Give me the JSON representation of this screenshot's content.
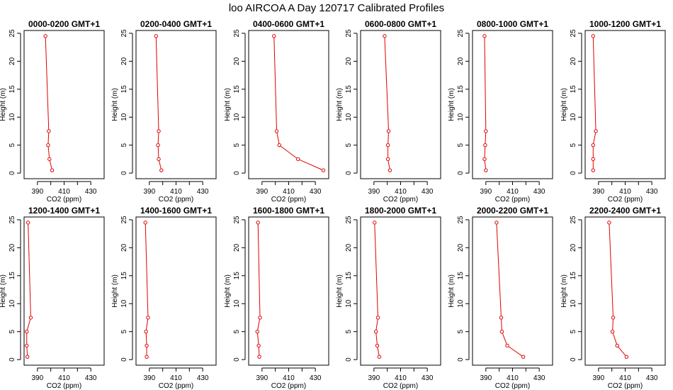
{
  "figure": {
    "title": "loo AIRCOA A  Day 120717  Calibrated Profiles"
  },
  "chart_data": [
    {
      "type": "line",
      "title": "0000-0200 GMT+1",
      "xlabel": "CO2 (ppm)",
      "ylabel": "Height (m)",
      "xlim": [
        380,
        440
      ],
      "ylim": [
        -1,
        25.5
      ],
      "xticks": [
        390,
        410,
        430
      ],
      "yticks": [
        0,
        5,
        10,
        15,
        20,
        25
      ],
      "grid": false,
      "series": [
        {
          "x": [
            401,
            399,
            398,
            398.5,
            396
          ],
          "y": [
            0.5,
            2.5,
            5,
            7.5,
            24.5
          ]
        }
      ]
    },
    {
      "type": "line",
      "title": "0200-0400 GMT+1",
      "xlabel": "CO2 (ppm)",
      "ylabel": "Height (m)",
      "xlim": [
        380,
        440
      ],
      "ylim": [
        -1,
        25.5
      ],
      "xticks": [
        390,
        410,
        430
      ],
      "yticks": [
        0,
        5,
        10,
        15,
        20,
        25
      ],
      "grid": false,
      "series": [
        {
          "x": [
            399,
            397,
            396.5,
            397,
            395
          ],
          "y": [
            0.5,
            2.5,
            5,
            7.5,
            24.5
          ]
        }
      ]
    },
    {
      "type": "line",
      "title": "0400-0600 GMT+1",
      "xlabel": "CO2 (ppm)",
      "ylabel": "Height (m)",
      "xlim": [
        380,
        440
      ],
      "ylim": [
        -1,
        25.5
      ],
      "xticks": [
        390,
        410,
        430
      ],
      "yticks": [
        0,
        5,
        10,
        15,
        20,
        25
      ],
      "grid": false,
      "series": [
        {
          "x": [
            436,
            417,
            403,
            401,
            399
          ],
          "y": [
            0.5,
            2.5,
            5,
            7.5,
            24.5
          ]
        }
      ]
    },
    {
      "type": "line",
      "title": "0600-0800 GMT+1",
      "xlabel": "CO2 (ppm)",
      "ylabel": "Height (m)",
      "xlim": [
        380,
        440
      ],
      "ylim": [
        -1,
        25.5
      ],
      "xticks": [
        390,
        410,
        430
      ],
      "yticks": [
        0,
        5,
        10,
        15,
        20,
        25
      ],
      "grid": false,
      "series": [
        {
          "x": [
            402,
            400.5,
            400.5,
            401,
            398
          ],
          "y": [
            0.5,
            2.5,
            5,
            7.5,
            24.5
          ]
        }
      ]
    },
    {
      "type": "line",
      "title": "0800-1000 GMT+1",
      "xlabel": "CO2 (ppm)",
      "ylabel": "Height (m)",
      "xlim": [
        380,
        440
      ],
      "ylim": [
        -1,
        25.5
      ],
      "xticks": [
        390,
        410,
        430
      ],
      "yticks": [
        0,
        5,
        10,
        15,
        20,
        25
      ],
      "grid": false,
      "series": [
        {
          "x": [
            390,
            389,
            389.5,
            390,
            389
          ]
        }
      ],
      "y_shared": true,
      "y": [
        0.5,
        2.5,
        5,
        7.5,
        24.5
      ]
    },
    {
      "type": "line",
      "title": "1000-1200 GMT+1",
      "xlabel": "CO2 (ppm)",
      "ylabel": "Height (m)",
      "xlim": [
        380,
        440
      ],
      "ylim": [
        -1,
        25.5
      ],
      "xticks": [
        390,
        410,
        430
      ],
      "yticks": [
        0,
        5,
        10,
        15,
        20,
        25
      ],
      "grid": false,
      "series": [
        {
          "x": [
            386,
            386,
            386,
            388,
            386
          ]
        }
      ],
      "y_shared": true,
      "y": [
        0.5,
        2.5,
        5,
        7.5,
        24.5
      ]
    },
    {
      "type": "line",
      "title": "1200-1400 GMT+1",
      "xlabel": "CO2 (ppm)",
      "ylabel": "Height (m)",
      "xlim": [
        380,
        440
      ],
      "ylim": [
        -1,
        25.5
      ],
      "xticks": [
        390,
        410,
        430
      ],
      "yticks": [
        0,
        5,
        10,
        15,
        20,
        25
      ],
      "grid": false,
      "series": [
        {
          "x": [
            382.5,
            382,
            382,
            385,
            383
          ]
        }
      ],
      "y_shared": true,
      "y": [
        0.5,
        2.5,
        5,
        7.5,
        24.5
      ]
    },
    {
      "type": "line",
      "title": "1400-1600 GMT+1",
      "xlabel": "CO2 (ppm)",
      "ylabel": "Height (m)",
      "xlim": [
        380,
        440
      ],
      "ylim": [
        -1,
        25.5
      ],
      "xticks": [
        390,
        410,
        430
      ],
      "yticks": [
        0,
        5,
        10,
        15,
        20,
        25
      ],
      "grid": false,
      "series": [
        {
          "x": [
            388,
            388,
            387.5,
            389,
            387
          ]
        }
      ],
      "y_shared": true,
      "y": [
        0.5,
        2.5,
        5,
        7.5,
        24.5
      ]
    },
    {
      "type": "line",
      "title": "1600-1800 GMT+1",
      "xlabel": "CO2 (ppm)",
      "ylabel": "Height (m)",
      "xlim": [
        380,
        440
      ],
      "ylim": [
        -1,
        25.5
      ],
      "xticks": [
        390,
        410,
        430
      ],
      "yticks": [
        0,
        5,
        10,
        15,
        20,
        25
      ],
      "grid": false,
      "series": [
        {
          "x": [
            388,
            387.5,
            386.5,
            388.5,
            387
          ]
        }
      ],
      "y_shared": true,
      "y": [
        0.5,
        2.5,
        5,
        7.5,
        24.5
      ]
    },
    {
      "type": "line",
      "title": "1800-2000 GMT+1",
      "xlabel": "CO2 (ppm)",
      "ylabel": "Height (m)",
      "xlim": [
        380,
        440
      ],
      "ylim": [
        -1,
        25.5
      ],
      "xticks": [
        390,
        410,
        430
      ],
      "yticks": [
        0,
        5,
        10,
        15,
        20,
        25
      ],
      "grid": false,
      "series": [
        {
          "x": [
            394,
            392.5,
            391.5,
            393,
            390.5
          ]
        }
      ],
      "y_shared": true,
      "y": [
        0.5,
        2.5,
        5,
        7.5,
        24.5
      ]
    },
    {
      "type": "line",
      "title": "2000-2200 GMT+1",
      "xlabel": "CO2 (ppm)",
      "ylabel": "Height (m)",
      "xlim": [
        380,
        440
      ],
      "ylim": [
        -1,
        25.5
      ],
      "xticks": [
        390,
        410,
        430
      ],
      "yticks": [
        0,
        5,
        10,
        15,
        20,
        25
      ],
      "grid": false,
      "series": [
        {
          "x": [
            418,
            406,
            402,
            401.5,
            398
          ]
        }
      ],
      "y_shared": true,
      "y": [
        0.5,
        2.5,
        5,
        7.5,
        24.5
      ]
    },
    {
      "type": "line",
      "title": "2200-2400 GMT+1",
      "xlabel": "CO2 (ppm)",
      "ylabel": "Height (m)",
      "xlim": [
        380,
        440
      ],
      "ylim": [
        -1,
        25.5
      ],
      "xticks": [
        390,
        410,
        430
      ],
      "yticks": [
        0,
        5,
        10,
        15,
        20,
        25
      ],
      "grid": false,
      "series": [
        {
          "x": [
            411,
            404,
            400.5,
            401,
            398
          ]
        }
      ],
      "y_shared": true,
      "y": [
        0.5,
        2.5,
        5,
        7.5,
        24.5
      ]
    }
  ],
  "style": {
    "line_color": "#e00000",
    "marker_color": "#e00000",
    "axis_color": "#000000"
  }
}
